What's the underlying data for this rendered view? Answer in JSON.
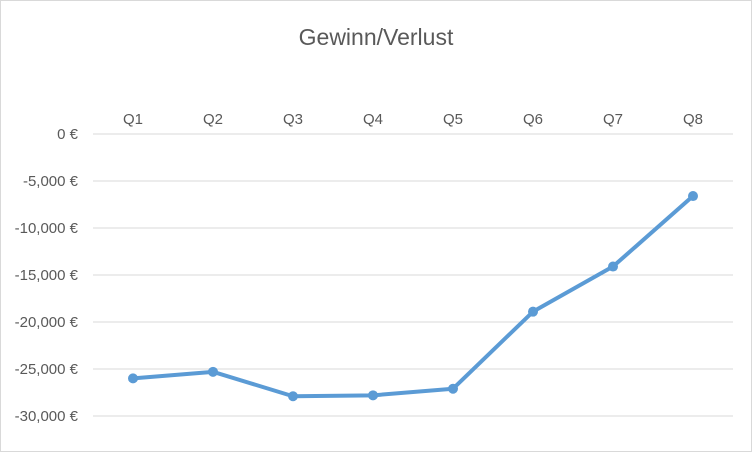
{
  "chart_data": {
    "type": "line",
    "title": "Gewinn/Verlust",
    "categories": [
      "Q1",
      "Q2",
      "Q3",
      "Q4",
      "Q5",
      "Q6",
      "Q7",
      "Q8"
    ],
    "series": [
      {
        "values": [
          -26000,
          -25300,
          -27900,
          -27800,
          -27100,
          -18900,
          -14100,
          -6600
        ]
      }
    ],
    "ylim": [
      -30000,
      0
    ],
    "yticks": [
      0,
      -5000,
      -10000,
      -15000,
      -20000,
      -25000,
      -30000
    ],
    "ytick_labels": [
      "0 €",
      "-5,000 €",
      "-10,000 €",
      "-15,000 €",
      "-20,000 €",
      "-25,000 €",
      "-30,000 €"
    ],
    "x_axis_position": "top",
    "grid": true,
    "legend": "none",
    "colors": {
      "line": "#5b9bd5",
      "grid": "#d9d9d9",
      "text": "#595959"
    }
  }
}
